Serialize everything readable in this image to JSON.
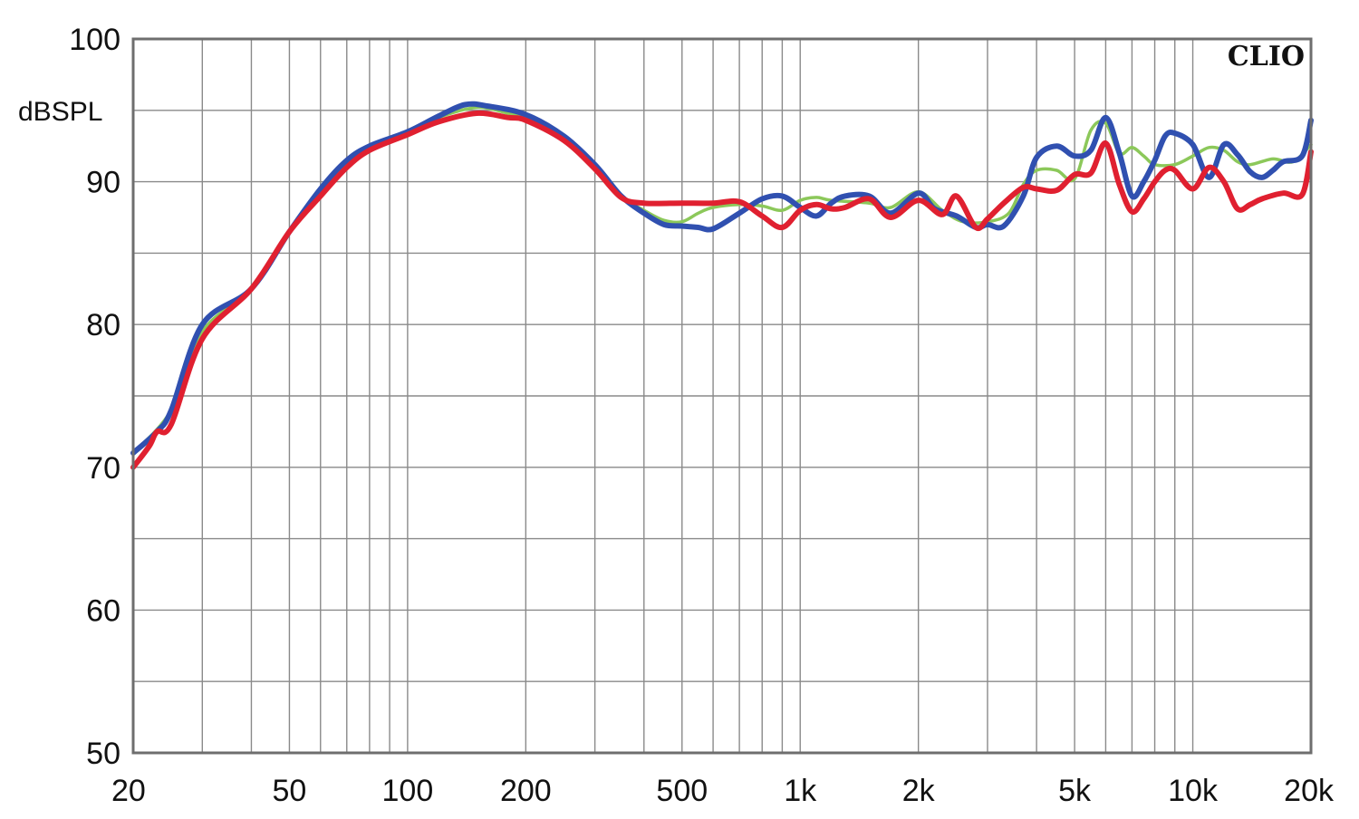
{
  "chart_data": {
    "type": "line",
    "title": "",
    "xlabel": "",
    "ylabel": "dBSPL",
    "x_scale": "log",
    "xlim": [
      20,
      20000
    ],
    "ylim": [
      50,
      100
    ],
    "grid": true,
    "watermark": "CLIO",
    "y_ticks": [
      {
        "value": 50,
        "label": "50"
      },
      {
        "value": 60,
        "label": "60"
      },
      {
        "value": 70,
        "label": "70"
      },
      {
        "value": 80,
        "label": "80"
      },
      {
        "value": 90,
        "label": "90"
      },
      {
        "value": 100,
        "label": "100"
      }
    ],
    "x_ticks": [
      {
        "value": 20,
        "label": "20"
      },
      {
        "value": 50,
        "label": "50"
      },
      {
        "value": 100,
        "label": "100"
      },
      {
        "value": 200,
        "label": "200"
      },
      {
        "value": 500,
        "label": "500"
      },
      {
        "value": 1000,
        "label": "1k"
      },
      {
        "value": 2000,
        "label": "2k"
      },
      {
        "value": 5000,
        "label": "5k"
      },
      {
        "value": 10000,
        "label": "10k"
      },
      {
        "value": 20000,
        "label": "20k"
      }
    ],
    "series": [
      {
        "color": "#8cc85a",
        "width": 3.5,
        "points": [
          [
            20,
            71
          ],
          [
            25,
            74
          ],
          [
            30,
            79.5
          ],
          [
            40,
            82.5
          ],
          [
            50,
            86.5
          ],
          [
            60,
            89.5
          ],
          [
            70,
            91.5
          ],
          [
            80,
            92.5
          ],
          [
            100,
            93.5
          ],
          [
            120,
            94.5
          ],
          [
            150,
            95.2
          ],
          [
            180,
            94.8
          ],
          [
            200,
            94.5
          ],
          [
            250,
            93
          ],
          [
            300,
            91
          ],
          [
            350,
            89
          ],
          [
            400,
            88
          ],
          [
            450,
            87.3
          ],
          [
            500,
            87.2
          ],
          [
            550,
            87.8
          ],
          [
            600,
            88.2
          ],
          [
            700,
            88.4
          ],
          [
            800,
            88.3
          ],
          [
            900,
            88
          ],
          [
            1000,
            88.7
          ],
          [
            1100,
            88.9
          ],
          [
            1200,
            88.7
          ],
          [
            1500,
            88.5
          ],
          [
            1700,
            88.2
          ],
          [
            2000,
            89.3
          ],
          [
            2300,
            88
          ],
          [
            2600,
            87.2
          ],
          [
            3000,
            87.2
          ],
          [
            3400,
            87.8
          ],
          [
            3700,
            89.8
          ],
          [
            4000,
            90.8
          ],
          [
            4500,
            90.8
          ],
          [
            5000,
            90.2
          ],
          [
            5500,
            93.6
          ],
          [
            6000,
            94.1
          ],
          [
            6500,
            92
          ],
          [
            7000,
            92.4
          ],
          [
            7500,
            91.8
          ],
          [
            8000,
            91.2
          ],
          [
            9000,
            91.2
          ],
          [
            10000,
            91.8
          ],
          [
            11000,
            92.4
          ],
          [
            12000,
            92.2
          ],
          [
            13000,
            91.4
          ],
          [
            14000,
            91.2
          ],
          [
            16000,
            91.6
          ],
          [
            18000,
            91.4
          ],
          [
            20000,
            92.6
          ]
        ]
      },
      {
        "color": "#3050b0",
        "width": 6,
        "points": [
          [
            20,
            71
          ],
          [
            23,
            72.5
          ],
          [
            25,
            74
          ],
          [
            30,
            80
          ],
          [
            40,
            82.5
          ],
          [
            50,
            86.5
          ],
          [
            60,
            89.5
          ],
          [
            70,
            91.5
          ],
          [
            80,
            92.5
          ],
          [
            100,
            93.5
          ],
          [
            120,
            94.6
          ],
          [
            140,
            95.4
          ],
          [
            160,
            95.3
          ],
          [
            200,
            94.7
          ],
          [
            250,
            93.2
          ],
          [
            300,
            91.2
          ],
          [
            350,
            89
          ],
          [
            400,
            87.8
          ],
          [
            450,
            87
          ],
          [
            500,
            86.9
          ],
          [
            550,
            86.8
          ],
          [
            600,
            86.7
          ],
          [
            700,
            87.8
          ],
          [
            800,
            88.8
          ],
          [
            900,
            89
          ],
          [
            1000,
            88.2
          ],
          [
            1100,
            87.6
          ],
          [
            1200,
            88.5
          ],
          [
            1300,
            89
          ],
          [
            1500,
            89
          ],
          [
            1700,
            87.8
          ],
          [
            2000,
            89.2
          ],
          [
            2200,
            88.1
          ],
          [
            2500,
            87.6
          ],
          [
            2800,
            86.8
          ],
          [
            3000,
            87
          ],
          [
            3300,
            86.9
          ],
          [
            3700,
            89
          ],
          [
            4000,
            91.7
          ],
          [
            4500,
            92.5
          ],
          [
            5000,
            91.8
          ],
          [
            5500,
            92.2
          ],
          [
            6000,
            94.5
          ],
          [
            6500,
            92
          ],
          [
            7000,
            89
          ],
          [
            7500,
            90
          ],
          [
            8000,
            91.5
          ],
          [
            8500,
            93.2
          ],
          [
            9000,
            93.4
          ],
          [
            10000,
            92.6
          ],
          [
            11000,
            90.3
          ],
          [
            12000,
            92.6
          ],
          [
            13000,
            91.9
          ],
          [
            14000,
            90.7
          ],
          [
            15000,
            90.3
          ],
          [
            16000,
            90.8
          ],
          [
            17000,
            91.4
          ],
          [
            19000,
            91.8
          ],
          [
            20000,
            94.3
          ]
        ]
      },
      {
        "color": "#e02030",
        "width": 6,
        "points": [
          [
            20,
            70
          ],
          [
            22,
            71.5
          ],
          [
            23,
            72.5
          ],
          [
            25,
            73
          ],
          [
            30,
            79
          ],
          [
            40,
            82.5
          ],
          [
            50,
            86.5
          ],
          [
            60,
            89
          ],
          [
            70,
            91
          ],
          [
            80,
            92.2
          ],
          [
            100,
            93.3
          ],
          [
            120,
            94.2
          ],
          [
            150,
            94.8
          ],
          [
            180,
            94.5
          ],
          [
            200,
            94.3
          ],
          [
            250,
            92.9
          ],
          [
            300,
            90.9
          ],
          [
            350,
            88.9
          ],
          [
            400,
            88.5
          ],
          [
            500,
            88.5
          ],
          [
            600,
            88.5
          ],
          [
            700,
            88.6
          ],
          [
            800,
            87.6
          ],
          [
            900,
            86.8
          ],
          [
            1000,
            88
          ],
          [
            1100,
            88.4
          ],
          [
            1200,
            88.1
          ],
          [
            1300,
            88.2
          ],
          [
            1500,
            88.8
          ],
          [
            1700,
            87.5
          ],
          [
            2000,
            88.7
          ],
          [
            2300,
            87.7
          ],
          [
            2500,
            89
          ],
          [
            2800,
            86.8
          ],
          [
            3000,
            87.4
          ],
          [
            3300,
            88.5
          ],
          [
            3700,
            89.6
          ],
          [
            4000,
            89.5
          ],
          [
            4500,
            89.4
          ],
          [
            5000,
            90.5
          ],
          [
            5500,
            90.6
          ],
          [
            6000,
            92.7
          ],
          [
            6500,
            89.8
          ],
          [
            7000,
            87.9
          ],
          [
            7500,
            88.8
          ],
          [
            8000,
            90
          ],
          [
            8500,
            90.8
          ],
          [
            9000,
            90.8
          ],
          [
            10000,
            89.5
          ],
          [
            11000,
            91
          ],
          [
            12000,
            90
          ],
          [
            13000,
            88.1
          ],
          [
            14000,
            88.4
          ],
          [
            15000,
            88.8
          ],
          [
            17000,
            89.2
          ],
          [
            19000,
            89.1
          ],
          [
            20000,
            92.1
          ]
        ]
      }
    ]
  }
}
